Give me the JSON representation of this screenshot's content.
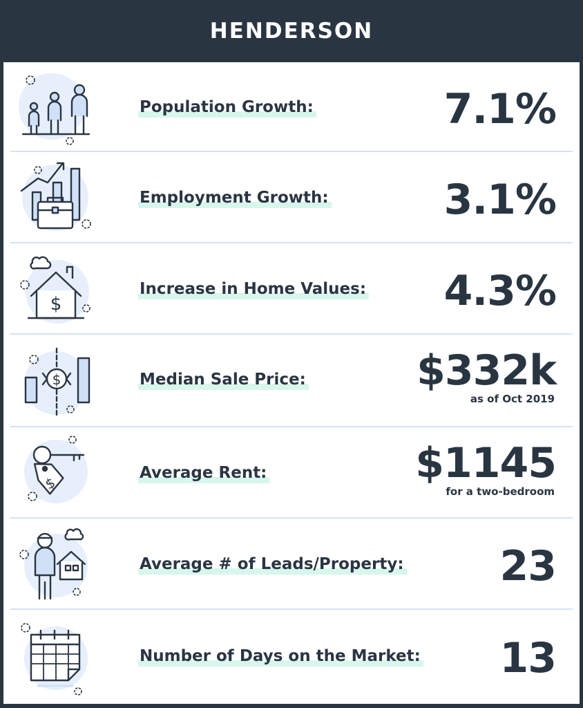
{
  "header": {
    "title": "HENDERSON"
  },
  "colors": {
    "header_bg": "#2a3542",
    "text": "#2a3542",
    "highlight": "#d7f6ec",
    "icon_circle": "#e6effb",
    "icon_fill": "#cfe0f7",
    "divider": "#d3e2f4"
  },
  "stats": [
    {
      "icon": "people-icon",
      "label": "Population Growth:",
      "value": "7.1%",
      "sub": ""
    },
    {
      "icon": "briefcase-chart-icon",
      "label": "Employment Growth:",
      "value": "3.1%",
      "sub": ""
    },
    {
      "icon": "house-dollar-icon",
      "label": "Increase in Home Values:",
      "value": "4.3%",
      "sub": ""
    },
    {
      "icon": "price-bars-icon",
      "label": "Median Sale Price:",
      "value": "$332k",
      "sub": "as  of Oct 2019"
    },
    {
      "icon": "key-tag-icon",
      "label": "Average Rent:",
      "value": "$1145",
      "sub": "for a two-bedroom"
    },
    {
      "icon": "person-house-icon",
      "label": "Average # of Leads/Property:",
      "value": "23",
      "sub": ""
    },
    {
      "icon": "calendar-icon",
      "label": "Number of Days on the Market:",
      "value": "13",
      "sub": ""
    }
  ]
}
